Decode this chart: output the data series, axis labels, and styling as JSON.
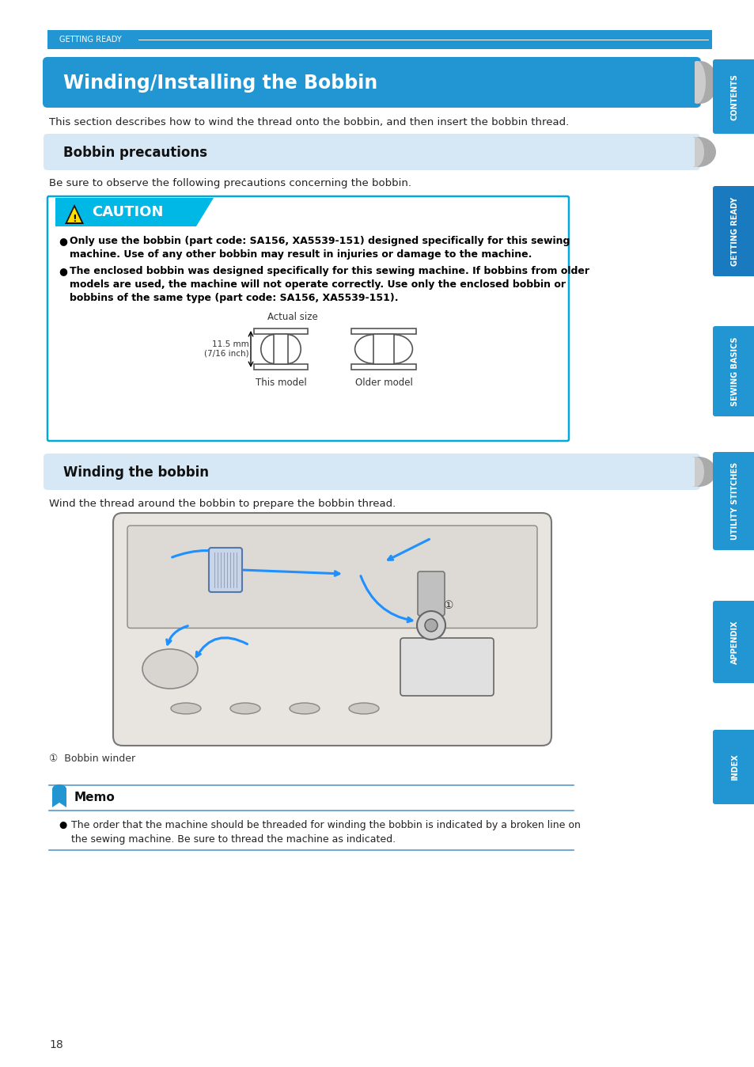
{
  "page_bg": "#ffffff",
  "header_bar_color": "#2196d3",
  "header_text": "GETTING READY",
  "main_title": "Winding/Installing the Bobbin",
  "main_title_bg": "#2196d3",
  "main_title_color": "#ffffff",
  "subtitle1": "Bobbin precautions",
  "subtitle1_bg": "#d6e8f5",
  "subtitle2": "Winding the bobbin",
  "subtitle2_bg": "#d6e8f5",
  "intro_text": "This section describes how to wind the thread onto the bobbin, and then insert the bobbin thread.",
  "precaution_intro": "Be sure to observe the following precautions concerning the bobbin.",
  "caution_bg": "#00bef0",
  "caution_text": "CAUTION",
  "caution_box_border": "#00aadd",
  "bullet1_line1": "Only use the bobbin (part code: SA156, XA5539-151) designed specifically for this sewing",
  "bullet1_line2": "machine. Use of any other bobbin may result in injuries or damage to the machine.",
  "bullet2_line1": "The enclosed bobbin was designed specifically for this sewing machine. If bobbins from older",
  "bullet2_line2": "models are used, the machine will not operate correctly. Use only the enclosed bobbin or",
  "bullet2_line3": "bobbins of the same type (part code: SA156, XA5539-151).",
  "actual_size_label": "Actual size",
  "dimension_label": "11.5 mm\n(7/16 inch)",
  "this_model_label": "This model",
  "older_model_label": "Older model",
  "winding_intro": "Wind the thread around the bobbin to prepare the bobbin thread.",
  "bobbin_winder_label": "①  Bobbin winder",
  "memo_title": "Memo",
  "memo_line1": "The order that the machine should be threaded for winding the bobbin is indicated by a broken line on",
  "memo_line2": "the sewing machine. Be sure to thread the machine as indicated.",
  "page_number": "18",
  "tab_labels": [
    "CONTENTS",
    "GETTING READY",
    "SEWING BASICS",
    "UTILITY STITCHES",
    "APPENDIX",
    "INDEX"
  ],
  "tab_color": "#2196d3",
  "tab_text_color": "#ffffff",
  "tab_highlight_color": "#1a7abf"
}
